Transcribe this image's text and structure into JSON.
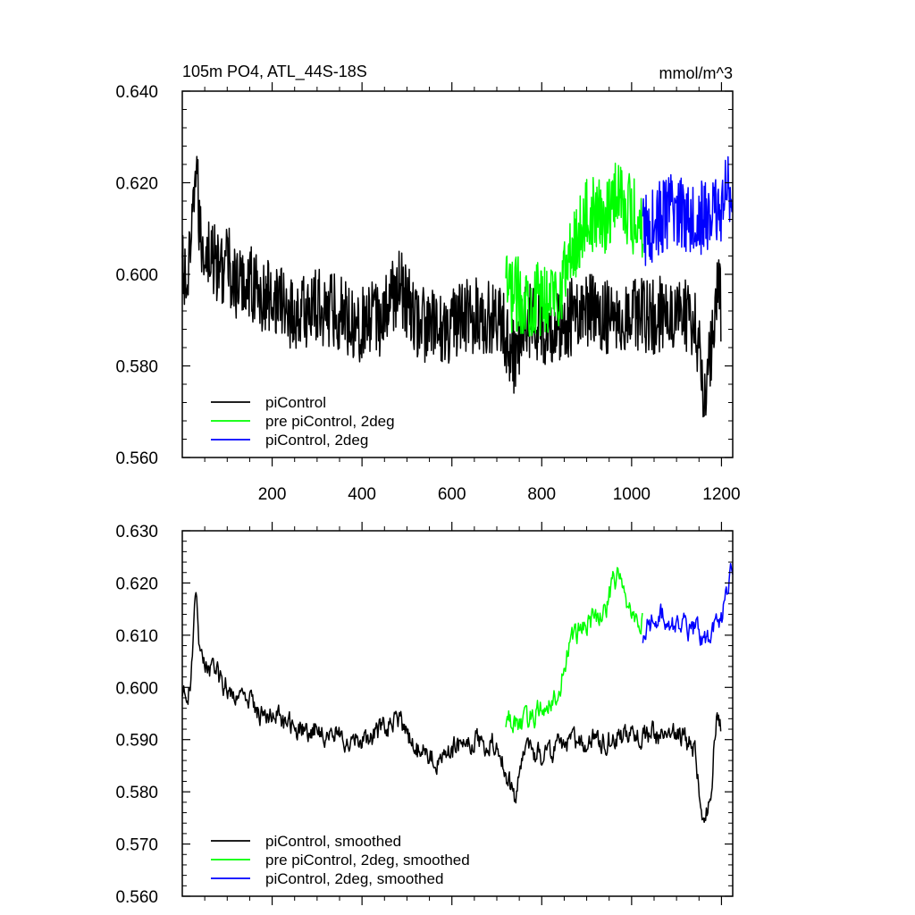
{
  "chart_data": [
    {
      "type": "line",
      "title": "105m PO4, ATL_44S-18S",
      "units_label": "mmol/m^3",
      "xlim": [
        0,
        1225
      ],
      "ylim": [
        0.56,
        0.64
      ],
      "xticks": [
        200,
        400,
        600,
        800,
        1000,
        1200
      ],
      "xtick_labels": [
        "200",
        "400",
        "600",
        "800",
        "1000",
        "1200"
      ],
      "yticks": [
        0.56,
        0.58,
        0.6,
        0.62,
        0.64
      ],
      "ytick_labels": [
        "0.560",
        "0.580",
        "0.600",
        "0.620",
        "0.640"
      ],
      "grid": false,
      "legend_position": "bottom-left",
      "series": [
        {
          "name": "piControl",
          "color": "#000000",
          "x_range": [
            0,
            1200
          ],
          "anchors": [
            [
              0,
              0.601
            ],
            [
              10,
              0.597
            ],
            [
              20,
              0.604
            ],
            [
              30,
              0.626
            ],
            [
              40,
              0.607
            ],
            [
              60,
              0.605
            ],
            [
              80,
              0.601
            ],
            [
              100,
              0.603
            ],
            [
              120,
              0.597
            ],
            [
              150,
              0.599
            ],
            [
              180,
              0.594
            ],
            [
              200,
              0.596
            ],
            [
              250,
              0.591
            ],
            [
              300,
              0.593
            ],
            [
              350,
              0.592
            ],
            [
              400,
              0.589
            ],
            [
              450,
              0.591
            ],
            [
              480,
              0.598
            ],
            [
              520,
              0.59
            ],
            [
              560,
              0.588
            ],
            [
              600,
              0.589
            ],
            [
              650,
              0.591
            ],
            [
              700,
              0.591
            ],
            [
              740,
              0.582
            ],
            [
              760,
              0.591
            ],
            [
              800,
              0.588
            ],
            [
              850,
              0.59
            ],
            [
              900,
              0.592
            ],
            [
              950,
              0.591
            ],
            [
              1000,
              0.592
            ],
            [
              1050,
              0.591
            ],
            [
              1100,
              0.592
            ],
            [
              1140,
              0.59
            ],
            [
              1160,
              0.574
            ],
            [
              1175,
              0.583
            ],
            [
              1190,
              0.598
            ],
            [
              1200,
              0.592
            ]
          ]
        },
        {
          "name": "pre piControl, 2deg",
          "color": "#00ff00",
          "x_range": [
            720,
            1025
          ],
          "anchors": [
            [
              720,
              0.596
            ],
            [
              760,
              0.595
            ],
            [
              800,
              0.594
            ],
            [
              840,
              0.597
            ],
            [
              870,
              0.606
            ],
            [
              900,
              0.613
            ],
            [
              940,
              0.612
            ],
            [
              970,
              0.619
            ],
            [
              1000,
              0.613
            ],
            [
              1025,
              0.611
            ]
          ]
        },
        {
          "name": "piControl, 2deg",
          "color": "#0000ff",
          "x_range": [
            1025,
            1225
          ],
          "anchors": [
            [
              1025,
              0.609
            ],
            [
              1060,
              0.612
            ],
            [
              1100,
              0.614
            ],
            [
              1140,
              0.613
            ],
            [
              1170,
              0.612
            ],
            [
              1200,
              0.615
            ],
            [
              1225,
              0.621
            ]
          ]
        }
      ]
    },
    {
      "type": "line",
      "xlim": [
        0,
        1225
      ],
      "ylim": [
        0.56,
        0.63
      ],
      "xticks": [
        200,
        400,
        600,
        800,
        1000,
        1200
      ],
      "xtick_labels": [],
      "yticks": [
        0.56,
        0.57,
        0.58,
        0.59,
        0.6,
        0.61,
        0.62,
        0.63
      ],
      "ytick_labels": [
        "0.560",
        "0.570",
        "0.580",
        "0.590",
        "0.600",
        "0.610",
        "0.620",
        "0.630"
      ],
      "grid": false,
      "legend_position": "bottom-left",
      "series": [
        {
          "name": "piControl, smoothed",
          "color": "#000000",
          "x_range": [
            0,
            1200
          ],
          "anchors": [
            [
              0,
              0.6
            ],
            [
              10,
              0.596
            ],
            [
              20,
              0.603
            ],
            [
              30,
              0.618
            ],
            [
              40,
              0.605
            ],
            [
              60,
              0.604
            ],
            [
              80,
              0.602
            ],
            [
              100,
              0.6
            ],
            [
              120,
              0.599
            ],
            [
              150,
              0.597
            ],
            [
              180,
              0.595
            ],
            [
              200,
              0.595
            ],
            [
              250,
              0.592
            ],
            [
              300,
              0.592
            ],
            [
              350,
              0.591
            ],
            [
              400,
              0.589
            ],
            [
              450,
              0.592
            ],
            [
              480,
              0.594
            ],
            [
              520,
              0.588
            ],
            [
              560,
              0.586
            ],
            [
              600,
              0.588
            ],
            [
              650,
              0.59
            ],
            [
              700,
              0.589
            ],
            [
              740,
              0.578
            ],
            [
              760,
              0.589
            ],
            [
              800,
              0.587
            ],
            [
              850,
              0.589
            ],
            [
              900,
              0.59
            ],
            [
              950,
              0.59
            ],
            [
              1000,
              0.591
            ],
            [
              1050,
              0.591
            ],
            [
              1100,
              0.591
            ],
            [
              1140,
              0.588
            ],
            [
              1160,
              0.574
            ],
            [
              1175,
              0.579
            ],
            [
              1190,
              0.596
            ],
            [
              1200,
              0.593
            ]
          ]
        },
        {
          "name": "pre piControl, 2deg, smoothed",
          "color": "#00ff00",
          "x_range": [
            720,
            1025
          ],
          "anchors": [
            [
              720,
              0.594
            ],
            [
              760,
              0.593
            ],
            [
              800,
              0.596
            ],
            [
              840,
              0.6
            ],
            [
              870,
              0.61
            ],
            [
              900,
              0.612
            ],
            [
              940,
              0.615
            ],
            [
              970,
              0.622
            ],
            [
              1000,
              0.614
            ],
            [
              1025,
              0.612
            ]
          ]
        },
        {
          "name": "piControl, 2deg, smoothed",
          "color": "#0000ff",
          "x_range": [
            1025,
            1225
          ],
          "anchors": [
            [
              1025,
              0.61
            ],
            [
              1060,
              0.614
            ],
            [
              1100,
              0.612
            ],
            [
              1140,
              0.611
            ],
            [
              1170,
              0.609
            ],
            [
              1200,
              0.613
            ],
            [
              1225,
              0.623
            ]
          ]
        }
      ]
    }
  ]
}
